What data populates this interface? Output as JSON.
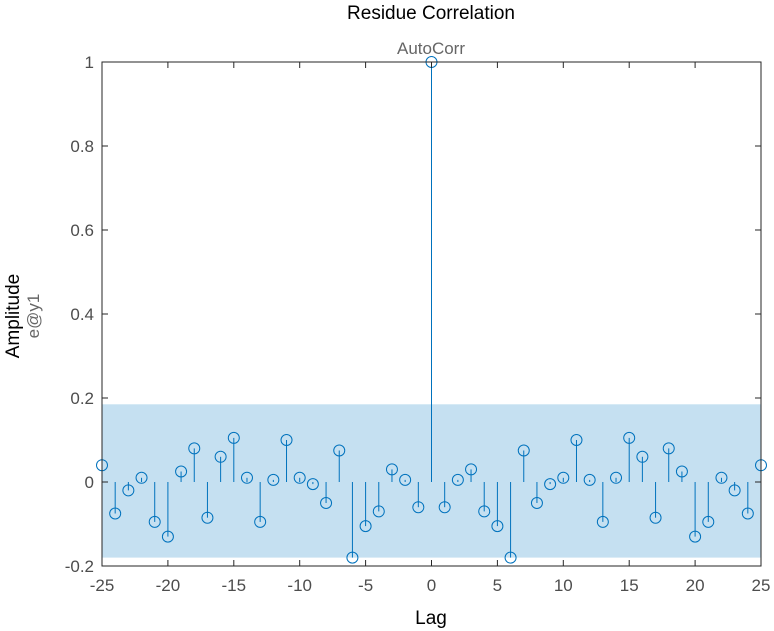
{
  "chart_data": {
    "type": "stem",
    "title": "Residue Correlation",
    "subtitle": "AutoCorr",
    "ylabel": "Amplitude",
    "ylabel_secondary": "e@y1",
    "xlabel": "Lag",
    "xlim": [
      -25,
      25
    ],
    "ylim": [
      -0.2,
      1
    ],
    "xticks": [
      -25,
      -20,
      -15,
      -10,
      -5,
      0,
      5,
      10,
      15,
      20,
      25
    ],
    "xtick_labels": [
      "-25",
      "-20",
      "-15",
      "-10",
      "-5",
      "0",
      "5",
      "10",
      "15",
      "20",
      "25"
    ],
    "yticks": [
      -0.2,
      0,
      0.2,
      0.4,
      0.6,
      0.8,
      1
    ],
    "ytick_labels": [
      "-0.2",
      "0",
      "0.2",
      "0.4",
      "0.6",
      "0.8",
      "1"
    ],
    "confidence_band": [
      -0.18,
      0.185
    ],
    "lags": [
      -25,
      -24,
      -23,
      -22,
      -21,
      -20,
      -19,
      -18,
      -17,
      -16,
      -15,
      -14,
      -13,
      -12,
      -11,
      -10,
      -9,
      -8,
      -7,
      -6,
      -5,
      -4,
      -3,
      -2,
      -1,
      0,
      1,
      2,
      3,
      4,
      5,
      6,
      7,
      8,
      9,
      10,
      11,
      12,
      13,
      14,
      15,
      16,
      17,
      18,
      19,
      20,
      21,
      22,
      23,
      24,
      25
    ],
    "values": [
      0.04,
      -0.075,
      -0.02,
      0.01,
      -0.095,
      -0.13,
      0.025,
      0.08,
      -0.085,
      0.06,
      0.105,
      0.01,
      -0.095,
      0.005,
      0.1,
      0.01,
      -0.005,
      -0.05,
      0.075,
      -0.18,
      -0.105,
      -0.07,
      0.03,
      0.005,
      -0.06,
      1.0,
      -0.06,
      0.005,
      0.03,
      -0.07,
      -0.105,
      -0.18,
      0.075,
      -0.05,
      -0.005,
      0.01,
      0.1,
      0.005,
      -0.095,
      0.01,
      0.105,
      0.06,
      -0.085,
      0.08,
      0.025,
      -0.13,
      -0.095,
      0.01,
      -0.02,
      -0.075,
      0.04
    ],
    "grid": false,
    "colors": {
      "stem": "#0072bd",
      "band": "#c5e0f1",
      "axis": "#262626"
    }
  }
}
